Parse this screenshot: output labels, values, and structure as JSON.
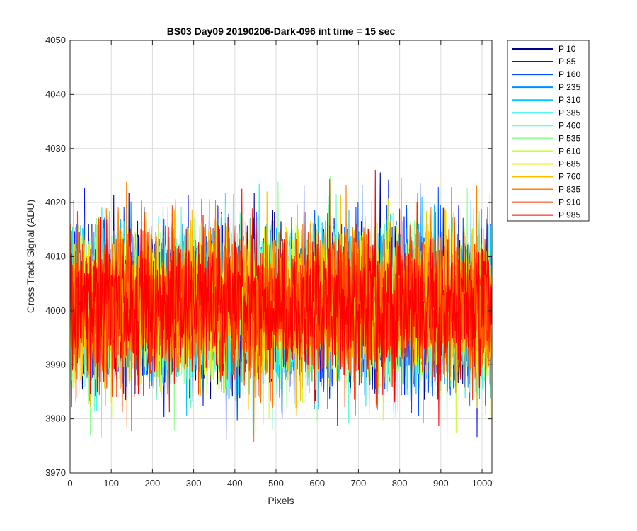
{
  "chart_data": {
    "type": "line",
    "title": "BS03 Day09 20190206-Dark-096 int time = 15 sec",
    "xlabel": "Pixels",
    "ylabel": "Cross Track Signal (ADU)",
    "xlim": [
      0,
      1024
    ],
    "ylim": [
      3970,
      4050
    ],
    "xticks": [
      "0",
      "100",
      "200",
      "300",
      "400",
      "500",
      "600",
      "700",
      "800",
      "900",
      "1000"
    ],
    "yticks": [
      "3970",
      "3980",
      "3990",
      "4000",
      "4010",
      "4020",
      "4030",
      "4040",
      "4050"
    ],
    "grid": true,
    "legend_position": "outside-top-right",
    "n_points": 1024,
    "baseline": 4001,
    "noise_sigma": 7,
    "series": [
      {
        "name": "P 10",
        "color": "#00008f"
      },
      {
        "name": "P 85",
        "color": "#0010ff"
      },
      {
        "name": "P 160",
        "color": "#0050ff"
      },
      {
        "name": "P 235",
        "color": "#0090ff"
      },
      {
        "name": "P 310",
        "color": "#00c8ff"
      },
      {
        "name": "P 385",
        "color": "#20f0f0"
      },
      {
        "name": "P 460",
        "color": "#60ffc8"
      },
      {
        "name": "P 535",
        "color": "#90ff90"
      },
      {
        "name": "P 610",
        "color": "#c8ff40"
      },
      {
        "name": "P 685",
        "color": "#f0f000"
      },
      {
        "name": "P 760",
        "color": "#ffc000"
      },
      {
        "name": "P 835",
        "color": "#ff8000"
      },
      {
        "name": "P 910",
        "color": "#ff4000"
      },
      {
        "name": "P 985",
        "color": "#ff0000"
      }
    ]
  }
}
